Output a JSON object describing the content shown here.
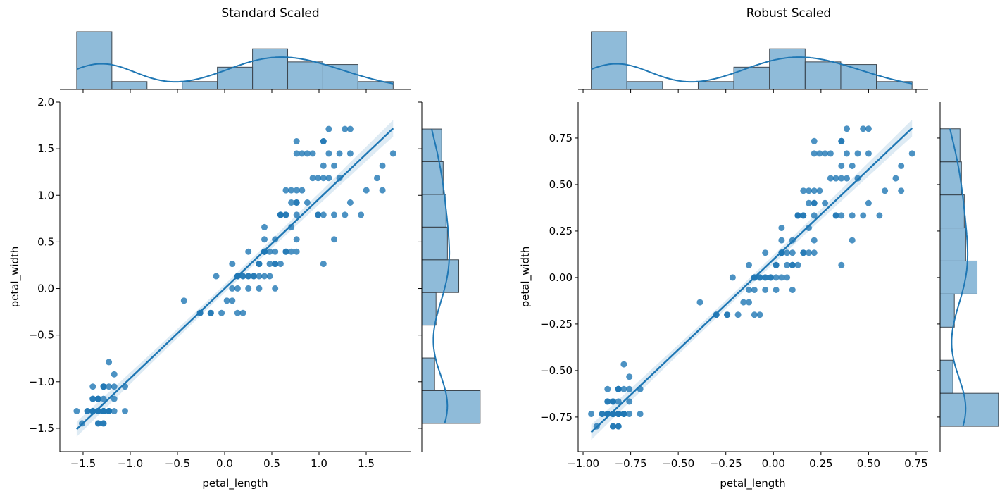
{
  "chart_data": [
    {
      "type": "scatter",
      "title": "Standard Scaled",
      "xlabel": "petal_length",
      "ylabel": "petal_width",
      "xlim": [
        -1.746,
        1.97
      ],
      "ylim": [
        -1.75,
        2.0
      ],
      "xticks": [
        -1.5,
        -1.0,
        -0.5,
        0.0,
        0.5,
        1.0,
        1.5
      ],
      "xtick_labels": [
        "−1.5",
        "−1.0",
        "−0.5",
        "0.0",
        "0.5",
        "1.0",
        "1.5"
      ],
      "yticks": [
        -1.5,
        -1.0,
        -0.5,
        0.0,
        0.5,
        1.0,
        1.5,
        2.0
      ],
      "ytick_labels": [
        "−1.5",
        "−1.0",
        "−0.5",
        "0.0",
        "0.5",
        "1.0",
        "1.5",
        "2.0"
      ],
      "x_transform": {
        "center": 3.758,
        "scale": 1.7594
      },
      "y_transform": {
        "center": 1.1993,
        "scale": 0.7597
      },
      "regression": {
        "fit": "linear",
        "ci": 95
      },
      "marginal_bins": 9,
      "marginal_x_counts": [
        44,
        6,
        0,
        6,
        17,
        31,
        21,
        19,
        6
      ],
      "marginal_y_counts": [
        41,
        9,
        0,
        10,
        26,
        18,
        17,
        15,
        14
      ],
      "marginal_kde": true,
      "color": "#1f77b4"
    },
    {
      "type": "scatter",
      "title": "Robust Scaled",
      "xlabel": "petal_length",
      "ylabel": "petal_width",
      "xlim": [
        -1.026,
        0.813
      ],
      "ylim": [
        -0.936,
        0.943
      ],
      "xticks": [
        -1.0,
        -0.75,
        -0.5,
        -0.25,
        0.0,
        0.25,
        0.5,
        0.75
      ],
      "xtick_labels": [
        "−1.00",
        "−0.75",
        "−0.50",
        "−0.25",
        "0.00",
        "0.25",
        "0.50",
        "0.75"
      ],
      "yticks": [
        -0.75,
        -0.5,
        -0.25,
        0.0,
        0.25,
        0.5,
        0.75
      ],
      "ytick_labels": [
        "−0.75",
        "−0.50",
        "−0.25",
        "0.00",
        "0.25",
        "0.50",
        "0.75"
      ],
      "x_transform": {
        "center": 4.35,
        "scale": 3.5
      },
      "y_transform": {
        "center": 1.3,
        "scale": 1.5
      },
      "regression": {
        "fit": "linear",
        "ci": 95
      },
      "marginal_bins": 9,
      "marginal_x_counts": [
        44,
        6,
        0,
        6,
        17,
        31,
        21,
        19,
        6
      ],
      "marginal_y_counts": [
        41,
        9,
        0,
        10,
        26,
        18,
        17,
        15,
        14
      ],
      "marginal_kde": true,
      "color": "#1f77b4"
    }
  ],
  "raw_points": {
    "petal_length": [
      1.4,
      1.4,
      1.3,
      1.5,
      1.4,
      1.7,
      1.4,
      1.5,
      1.4,
      1.5,
      1.5,
      1.6,
      1.4,
      1.1,
      1.2,
      1.5,
      1.3,
      1.4,
      1.7,
      1.5,
      1.7,
      1.5,
      1.0,
      1.7,
      1.9,
      1.6,
      1.6,
      1.5,
      1.4,
      1.6,
      1.6,
      1.5,
      1.5,
      1.4,
      1.5,
      1.2,
      1.3,
      1.4,
      1.3,
      1.5,
      1.3,
      1.3,
      1.3,
      1.6,
      1.9,
      1.4,
      1.6,
      1.4,
      1.5,
      1.4,
      4.7,
      4.5,
      4.9,
      4.0,
      4.6,
      4.5,
      4.7,
      3.3,
      4.6,
      3.9,
      3.5,
      4.2,
      4.0,
      4.7,
      3.6,
      4.4,
      4.5,
      4.1,
      4.5,
      3.9,
      4.8,
      4.0,
      4.9,
      4.7,
      4.3,
      4.4,
      4.8,
      5.0,
      4.5,
      3.5,
      3.8,
      3.7,
      3.9,
      5.1,
      4.5,
      4.5,
      4.7,
      4.4,
      4.1,
      4.0,
      4.4,
      4.6,
      4.0,
      3.3,
      4.2,
      4.2,
      4.2,
      4.3,
      3.0,
      4.1,
      6.0,
      5.1,
      5.9,
      5.6,
      5.8,
      6.6,
      4.5,
      6.3,
      5.8,
      6.1,
      5.1,
      5.3,
      5.5,
      5.0,
      5.1,
      5.3,
      5.5,
      6.7,
      6.9,
      5.0,
      5.7,
      4.9,
      6.7,
      4.9,
      5.7,
      6.0,
      4.8,
      4.9,
      5.6,
      5.8,
      6.1,
      6.4,
      5.6,
      5.1,
      5.6,
      6.1,
      5.6,
      5.5,
      4.8,
      5.4,
      5.6,
      5.1,
      5.1,
      5.9,
      5.7,
      5.2,
      5.0,
      5.2,
      5.4,
      5.1
    ],
    "petal_width": [
      0.2,
      0.2,
      0.2,
      0.2,
      0.2,
      0.4,
      0.3,
      0.2,
      0.2,
      0.1,
      0.2,
      0.2,
      0.1,
      0.1,
      0.2,
      0.4,
      0.4,
      0.3,
      0.3,
      0.3,
      0.2,
      0.4,
      0.2,
      0.5,
      0.2,
      0.2,
      0.4,
      0.2,
      0.2,
      0.2,
      0.2,
      0.4,
      0.1,
      0.2,
      0.2,
      0.2,
      0.2,
      0.1,
      0.2,
      0.2,
      0.3,
      0.3,
      0.2,
      0.6,
      0.4,
      0.3,
      0.2,
      0.2,
      0.2,
      0.2,
      1.4,
      1.5,
      1.5,
      1.3,
      1.5,
      1.3,
      1.6,
      1.0,
      1.3,
      1.4,
      1.0,
      1.5,
      1.0,
      1.4,
      1.3,
      1.4,
      1.5,
      1.0,
      1.5,
      1.1,
      1.8,
      1.3,
      1.5,
      1.2,
      1.3,
      1.4,
      1.4,
      1.7,
      1.5,
      1.0,
      1.1,
      1.0,
      1.2,
      1.6,
      1.5,
      1.6,
      1.5,
      1.3,
      1.3,
      1.3,
      1.2,
      1.4,
      1.2,
      1.0,
      1.3,
      1.2,
      1.3,
      1.3,
      1.1,
      1.3,
      2.5,
      1.9,
      2.1,
      1.8,
      2.2,
      2.1,
      1.7,
      1.8,
      1.8,
      2.5,
      2.0,
      1.9,
      2.1,
      2.0,
      2.4,
      2.3,
      1.8,
      2.2,
      2.3,
      1.5,
      2.3,
      2.0,
      2.0,
      1.8,
      2.1,
      1.8,
      1.8,
      1.8,
      2.1,
      1.6,
      1.9,
      2.0,
      2.2,
      1.5,
      1.4,
      2.3,
      2.4,
      1.8,
      1.8,
      2.1,
      2.4,
      2.3,
      1.9,
      2.3,
      2.5,
      2.3,
      1.9,
      2.0,
      2.3,
      1.8
    ]
  }
}
